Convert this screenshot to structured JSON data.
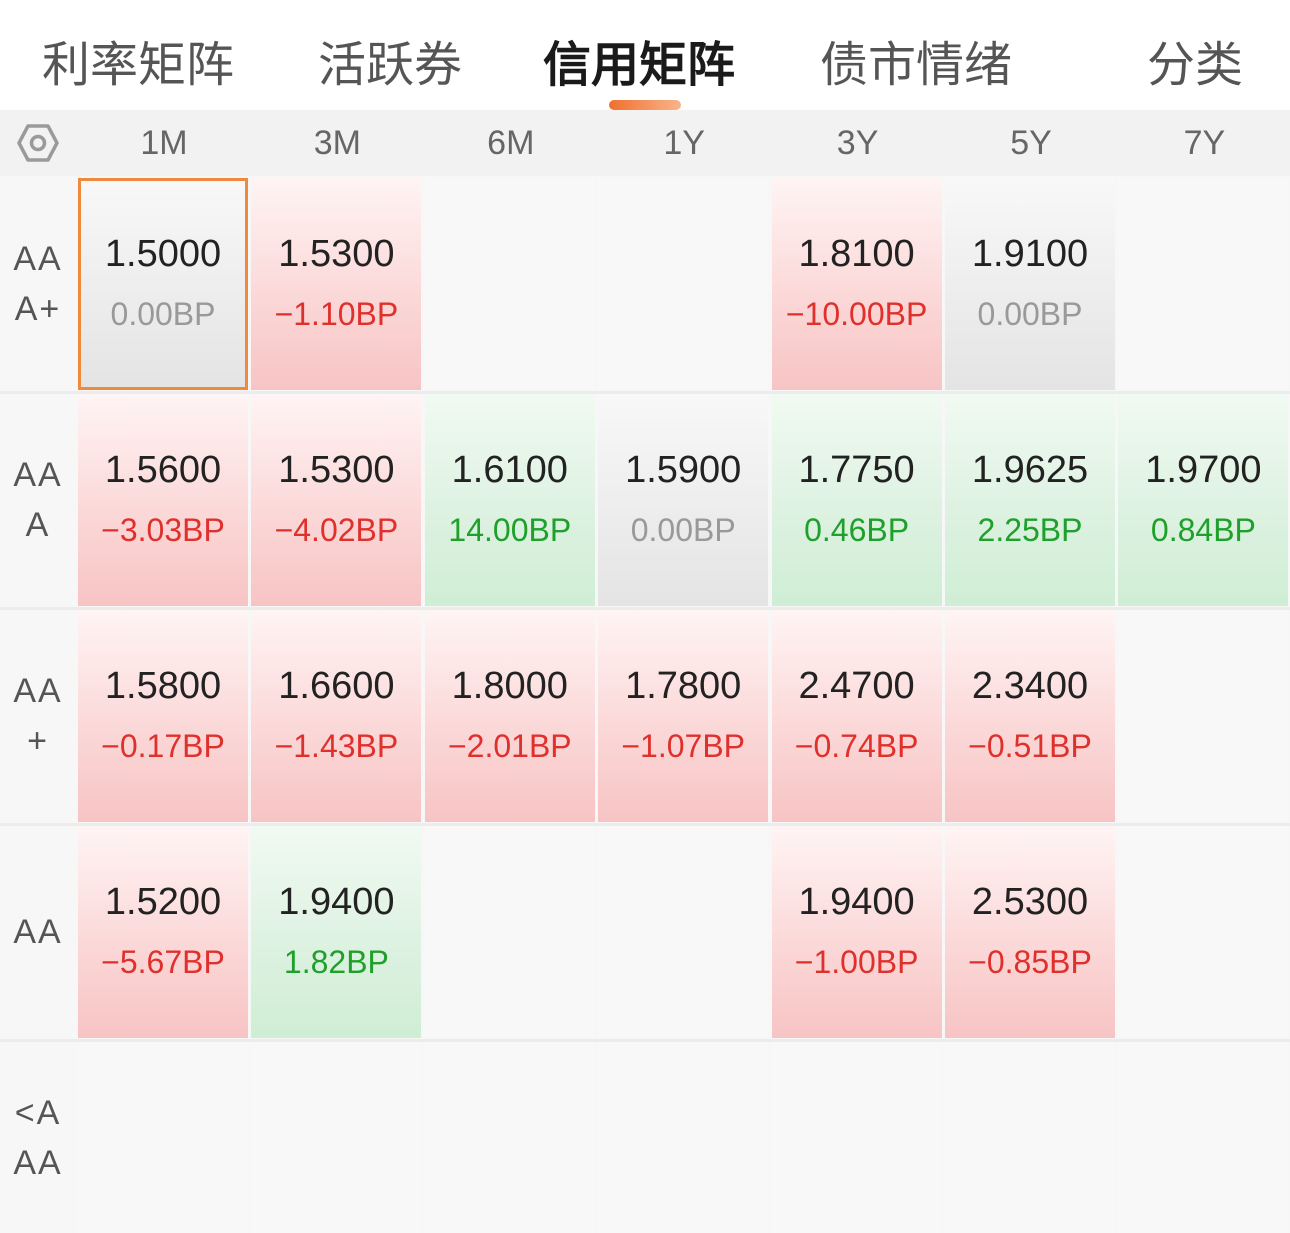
{
  "tabs": [
    {
      "label": "利率矩阵",
      "active": false
    },
    {
      "label": "活跃券",
      "active": false
    },
    {
      "label": "信用矩阵",
      "active": true
    },
    {
      "label": "债市情绪",
      "active": false
    },
    {
      "label": "分类",
      "active": false
    }
  ],
  "matrix": {
    "settings_icon": "hexagon-gear-icon",
    "columns": [
      "1M",
      "3M",
      "6M",
      "1Y",
      "3Y",
      "5Y",
      "7Y"
    ],
    "rows": [
      {
        "label": "AAA+",
        "cells": [
          {
            "value": "1.5000",
            "change": "0.00BP",
            "trend": "flat",
            "selected": true
          },
          {
            "value": "1.5300",
            "change": "−1.10BP",
            "trend": "up"
          },
          null,
          null,
          {
            "value": "1.8100",
            "change": "−10.00BP",
            "trend": "up"
          },
          {
            "value": "1.9100",
            "change": "0.00BP",
            "trend": "flat"
          },
          null
        ]
      },
      {
        "label": "AAA",
        "cells": [
          {
            "value": "1.5600",
            "change": "−3.03BP",
            "trend": "up"
          },
          {
            "value": "1.5300",
            "change": "−4.02BP",
            "trend": "up"
          },
          {
            "value": "1.6100",
            "change": "14.00BP",
            "trend": "down"
          },
          {
            "value": "1.5900",
            "change": "0.00BP",
            "trend": "flat"
          },
          {
            "value": "1.7750",
            "change": "0.46BP",
            "trend": "down"
          },
          {
            "value": "1.9625",
            "change": "2.25BP",
            "trend": "down"
          },
          {
            "value": "1.9700",
            "change": "0.84BP",
            "trend": "down"
          }
        ]
      },
      {
        "label": "AA+",
        "cells": [
          {
            "value": "1.5800",
            "change": "−0.17BP",
            "trend": "up"
          },
          {
            "value": "1.6600",
            "change": "−1.43BP",
            "trend": "up"
          },
          {
            "value": "1.8000",
            "change": "−2.01BP",
            "trend": "up"
          },
          {
            "value": "1.7800",
            "change": "−1.07BP",
            "trend": "up"
          },
          {
            "value": "2.4700",
            "change": "−0.74BP",
            "trend": "up"
          },
          {
            "value": "2.3400",
            "change": "−0.51BP",
            "trend": "up"
          },
          null
        ]
      },
      {
        "label": "AA",
        "cells": [
          {
            "value": "1.5200",
            "change": "−5.67BP",
            "trend": "up"
          },
          {
            "value": "1.9400",
            "change": "1.82BP",
            "trend": "down"
          },
          null,
          null,
          {
            "value": "1.9400",
            "change": "−1.00BP",
            "trend": "up"
          },
          {
            "value": "2.5300",
            "change": "−0.85BP",
            "trend": "up"
          },
          null
        ]
      },
      {
        "label": "<AAA",
        "cells": [
          null,
          null,
          null,
          null,
          null,
          null,
          null
        ]
      }
    ]
  },
  "colors": {
    "accent": "#f07030",
    "rise_red": "#e0302c",
    "fall_green": "#1ea02a",
    "neutral_gray": "#999999",
    "selected_border": "#f0883d"
  }
}
